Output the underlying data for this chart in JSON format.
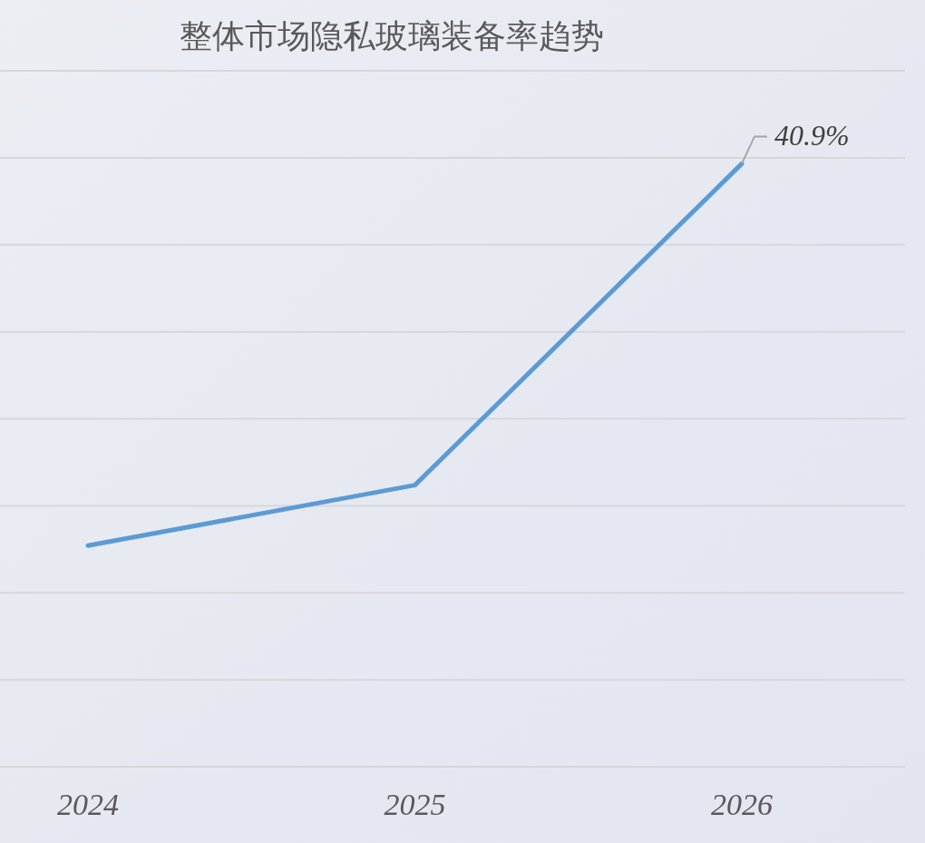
{
  "chart_data": {
    "type": "line",
    "title": "整体市场隐私玻璃装备率趋势",
    "categories": [
      "2024",
      "2025",
      "2026"
    ],
    "ylim": [
      0,
      47.2
    ],
    "series": [
      {
        "color": "#5b9bd5",
        "values": [
          15.0,
          19.1,
          40.9
        ],
        "value_labels": [
          null,
          null,
          "40.9%"
        ]
      }
    ],
    "grid": "y",
    "marker": "none",
    "line_style": "solid"
  }
}
